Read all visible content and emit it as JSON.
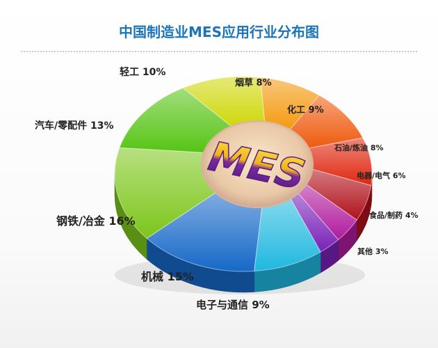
{
  "title": "中国制造业MES应用行业分布图",
  "center_logo": "MES",
  "chart_data": {
    "type": "pie",
    "title": "中国制造业MES应用行业分布图",
    "slices": [
      {
        "name": "轻工",
        "value": 10,
        "label": "轻工 10%",
        "color": "#cfd80a"
      },
      {
        "name": "烟草",
        "value": 8,
        "label": "烟草 8%",
        "color": "#f59a10"
      },
      {
        "name": "化工",
        "value": 9,
        "label": "化工 9%",
        "color": "#ef5a0e"
      },
      {
        "name": "石油/炼油",
        "value": 8,
        "label": "石油/炼油 8%",
        "color": "#e0260f"
      },
      {
        "name": "电器/电气",
        "value": 6,
        "label": "电器/电气 6%",
        "color": "#b0101a"
      },
      {
        "name": "食品/制药",
        "value": 4,
        "label": "食品/制药 4%",
        "color": "#b01a9e"
      },
      {
        "name": "其他",
        "value": 3,
        "label": "其他 3%",
        "color": "#7a21b8"
      },
      {
        "name": "电子与通信",
        "value": 9,
        "label": "电子与通信 9%",
        "color": "#1fb8e0"
      },
      {
        "name": "机械",
        "value": 15,
        "label": "机械 15%",
        "color": "#1668c8"
      },
      {
        "name": "钢铁/冶金",
        "value": 16,
        "label": "钢铁/冶金 16%",
        "color": "#7cc61a"
      },
      {
        "name": "汽车/零配件",
        "value": 13,
        "label": "汽车/零配件 13%",
        "color": "#56c414"
      }
    ]
  }
}
